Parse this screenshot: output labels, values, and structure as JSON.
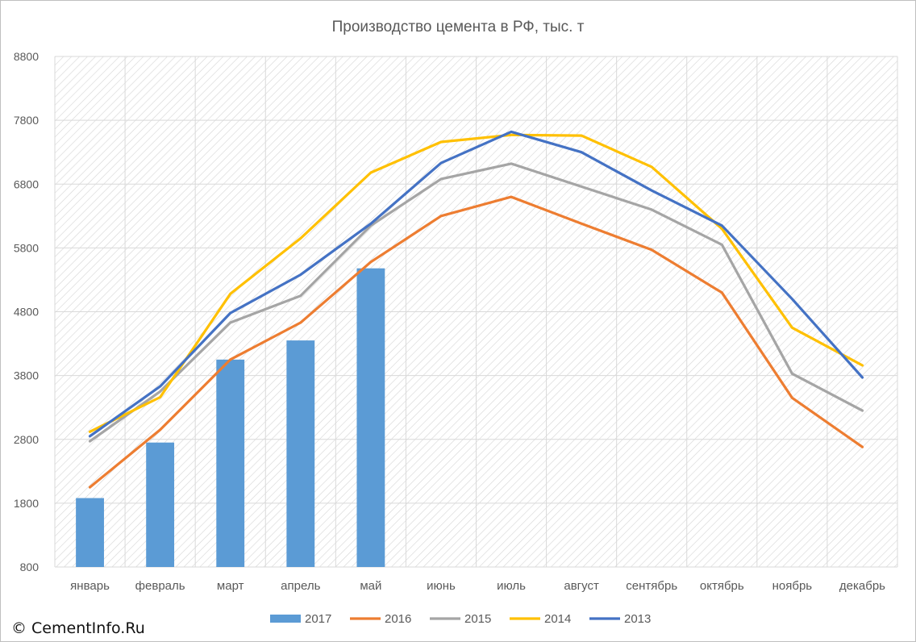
{
  "chart_data": {
    "type": "bar+line",
    "title": "Производство цемента в РФ, тыс. т",
    "xlabel": "",
    "ylabel": "",
    "categories": [
      "январь",
      "февраль",
      "март",
      "апрель",
      "май",
      "июнь",
      "июль",
      "август",
      "сентябрь",
      "октябрь",
      "ноябрь",
      "декабрь"
    ],
    "ylim": [
      800,
      8800
    ],
    "yticks": [
      800,
      1800,
      2800,
      3800,
      4800,
      5800,
      6800,
      7800,
      8800
    ],
    "grid": true,
    "legend_position": "bottom",
    "series": [
      {
        "name": "2017",
        "type": "bar",
        "color": "#5b9bd5",
        "values": [
          1880,
          2750,
          4050,
          4350,
          5480,
          null,
          null,
          null,
          null,
          null,
          null,
          null
        ]
      },
      {
        "name": "2016",
        "type": "line",
        "color": "#ed7d31",
        "values": [
          2050,
          2950,
          4050,
          4630,
          5580,
          6300,
          6600,
          6180,
          5770,
          5100,
          3450,
          2680
        ]
      },
      {
        "name": "2015",
        "type": "line",
        "color": "#a5a5a5",
        "values": [
          2770,
          3550,
          4630,
          5050,
          6150,
          6880,
          7120,
          6760,
          6400,
          5850,
          3830,
          3250
        ]
      },
      {
        "name": "2014",
        "type": "line",
        "color": "#ffc000",
        "values": [
          2920,
          3460,
          5080,
          5950,
          6980,
          7460,
          7570,
          7560,
          7070,
          6100,
          4550,
          3960
        ]
      },
      {
        "name": "2013",
        "type": "line",
        "color": "#4472c4",
        "values": [
          2850,
          3630,
          4780,
          5380,
          6180,
          7130,
          7620,
          7300,
          6700,
          6150,
          5000,
          3770
        ]
      }
    ]
  },
  "watermark": "© CementInfo.Ru"
}
